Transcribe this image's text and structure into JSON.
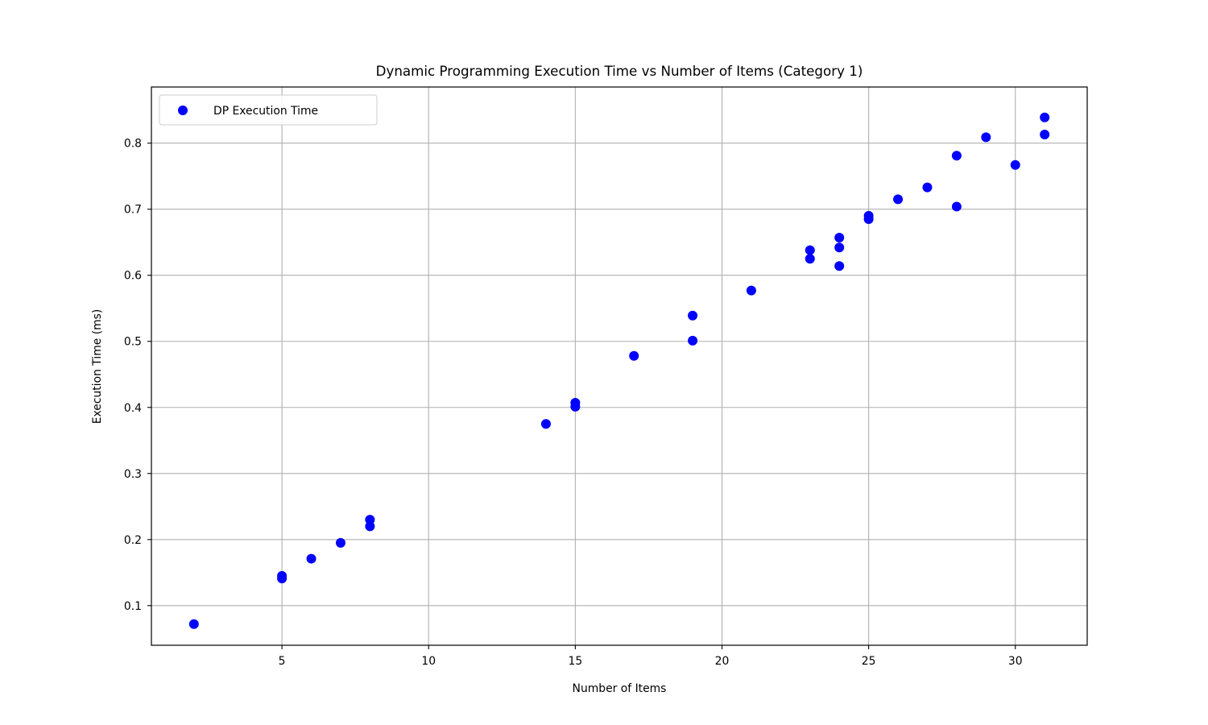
{
  "chart_data": {
    "type": "scatter",
    "title": "Dynamic Programming Execution Time vs Number of Items (Category 1)",
    "xlabel": "Number of Items",
    "ylabel": "Execution Time (ms)",
    "xlim": [
      0.55,
      32.45
    ],
    "ylim": [
      0.04,
      0.885
    ],
    "xticks": [
      5,
      10,
      15,
      20,
      25,
      30
    ],
    "yticks": [
      0.1,
      0.2,
      0.3,
      0.4,
      0.5,
      0.6,
      0.7,
      0.8
    ],
    "grid": true,
    "legend_position": "upper-left",
    "series": [
      {
        "name": "DP Execution Time",
        "color": "#0000ff",
        "points": [
          [
            2,
            0.072
          ],
          [
            5,
            0.145
          ],
          [
            5,
            0.141
          ],
          [
            6,
            0.171
          ],
          [
            7,
            0.195
          ],
          [
            8,
            0.23
          ],
          [
            8,
            0.22
          ],
          [
            14,
            0.375
          ],
          [
            15,
            0.407
          ],
          [
            15,
            0.401
          ],
          [
            17,
            0.478
          ],
          [
            19,
            0.539
          ],
          [
            19,
            0.501
          ],
          [
            21,
            0.577
          ],
          [
            23,
            0.638
          ],
          [
            23,
            0.625
          ],
          [
            24,
            0.657
          ],
          [
            24,
            0.642
          ],
          [
            24,
            0.614
          ],
          [
            25,
            0.69
          ],
          [
            25,
            0.685
          ],
          [
            26,
            0.715
          ],
          [
            27,
            0.733
          ],
          [
            28,
            0.781
          ],
          [
            28,
            0.704
          ],
          [
            29,
            0.809
          ],
          [
            30,
            0.767
          ],
          [
            31,
            0.839
          ],
          [
            31,
            0.813
          ]
        ]
      }
    ]
  }
}
